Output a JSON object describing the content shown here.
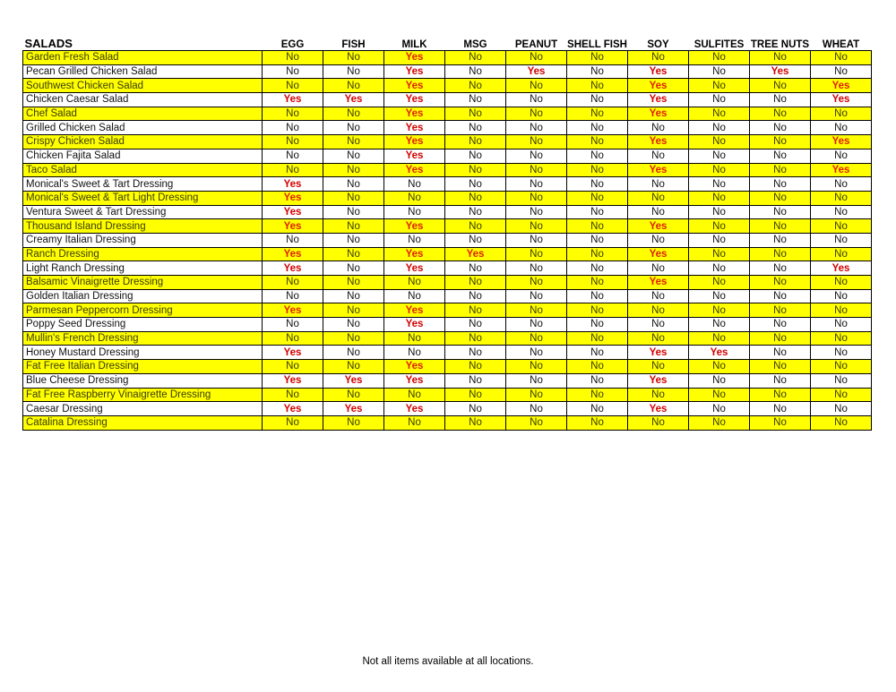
{
  "table": {
    "title": "SALADS",
    "columns": [
      "EGG",
      "FISH",
      "MILK",
      "MSG",
      "PEANUT",
      "SHELL FISH",
      "SOY",
      "SULFITES",
      "TREE NUTS",
      "WHEAT"
    ],
    "highlight_color": "#ffff00",
    "yes_color": "#d40000",
    "rows": [
      {
        "name": "Garden Fresh Salad",
        "values": [
          "No",
          "No",
          "Yes",
          "No",
          "No",
          "No",
          "No",
          "No",
          "No",
          "No"
        ]
      },
      {
        "name": "Pecan Grilled Chicken Salad",
        "values": [
          "No",
          "No",
          "Yes",
          "No",
          "Yes",
          "No",
          "Yes",
          "No",
          "Yes",
          "No"
        ]
      },
      {
        "name": "Southwest Chicken Salad",
        "values": [
          "No",
          "No",
          "Yes",
          "No",
          "No",
          "No",
          "Yes",
          "No",
          "No",
          "Yes"
        ]
      },
      {
        "name": "Chicken Caesar Salad",
        "values": [
          "Yes",
          "Yes",
          "Yes",
          "No",
          "No",
          "No",
          "Yes",
          "No",
          "No",
          "Yes"
        ]
      },
      {
        "name": "Chef Salad",
        "values": [
          "No",
          "No",
          "Yes",
          "No",
          "No",
          "No",
          "Yes",
          "No",
          "No",
          "No"
        ]
      },
      {
        "name": "Grilled Chicken Salad",
        "values": [
          "No",
          "No",
          "Yes",
          "No",
          "No",
          "No",
          "No",
          "No",
          "No",
          "No"
        ]
      },
      {
        "name": "Crispy Chicken Salad",
        "values": [
          "No",
          "No",
          "Yes",
          "No",
          "No",
          "No",
          "Yes",
          "No",
          "No",
          "Yes"
        ]
      },
      {
        "name": "Chicken Fajita Salad",
        "values": [
          "No",
          "No",
          "Yes",
          "No",
          "No",
          "No",
          "No",
          "No",
          "No",
          "No"
        ]
      },
      {
        "name": "Taco Salad",
        "values": [
          "No",
          "No",
          "Yes",
          "No",
          "No",
          "No",
          "Yes",
          "No",
          "No",
          "Yes"
        ]
      },
      {
        "name": "Monical's Sweet & Tart Dressing",
        "values": [
          "Yes",
          "No",
          "No",
          "No",
          "No",
          "No",
          "No",
          "No",
          "No",
          "No"
        ]
      },
      {
        "name": "Monical's Sweet & Tart Light Dressing",
        "values": [
          "Yes",
          "No",
          "No",
          "No",
          "No",
          "No",
          "No",
          "No",
          "No",
          "No"
        ]
      },
      {
        "name": "Ventura Sweet & Tart Dressing",
        "values": [
          "Yes",
          "No",
          "No",
          "No",
          "No",
          "No",
          "No",
          "No",
          "No",
          "No"
        ]
      },
      {
        "name": "Thousand Island Dressing",
        "values": [
          "Yes",
          "No",
          "Yes",
          "No",
          "No",
          "No",
          "Yes",
          "No",
          "No",
          "No"
        ]
      },
      {
        "name": "Creamy Italian Dressing",
        "values": [
          "No",
          "No",
          "No",
          "No",
          "No",
          "No",
          "No",
          "No",
          "No",
          "No"
        ]
      },
      {
        "name": "Ranch Dressing",
        "values": [
          "Yes",
          "No",
          "Yes",
          "Yes",
          "No",
          "No",
          "Yes",
          "No",
          "No",
          "No"
        ]
      },
      {
        "name": "Light Ranch Dressing",
        "values": [
          "Yes",
          "No",
          "Yes",
          "No",
          "No",
          "No",
          "No",
          "No",
          "No",
          "Yes"
        ]
      },
      {
        "name": "Balsamic Vinaigrette Dressing",
        "values": [
          "No",
          "No",
          "No",
          "No",
          "No",
          "No",
          "Yes",
          "No",
          "No",
          "No"
        ]
      },
      {
        "name": "Golden Italian Dressing",
        "values": [
          "No",
          "No",
          "No",
          "No",
          "No",
          "No",
          "No",
          "No",
          "No",
          "No"
        ]
      },
      {
        "name": "Parmesan Peppercorn Dressing",
        "values": [
          "Yes",
          "No",
          "Yes",
          "No",
          "No",
          "No",
          "No",
          "No",
          "No",
          "No"
        ]
      },
      {
        "name": "Poppy Seed Dressing",
        "values": [
          "No",
          "No",
          "Yes",
          "No",
          "No",
          "No",
          "No",
          "No",
          "No",
          "No"
        ]
      },
      {
        "name": "Mullin's French Dressing",
        "values": [
          "No",
          "No",
          "No",
          "No",
          "No",
          "No",
          "No",
          "No",
          "No",
          "No"
        ]
      },
      {
        "name": "Honey Mustard Dressing",
        "values": [
          "Yes",
          "No",
          "No",
          "No",
          "No",
          "No",
          "Yes",
          "Yes",
          "No",
          "No"
        ]
      },
      {
        "name": "Fat Free Italian Dressing",
        "values": [
          "No",
          "No",
          "Yes",
          "No",
          "No",
          "No",
          "No",
          "No",
          "No",
          "No"
        ]
      },
      {
        "name": "Blue Cheese Dressing",
        "values": [
          "Yes",
          "Yes",
          "Yes",
          "No",
          "No",
          "No",
          "Yes",
          "No",
          "No",
          "No"
        ]
      },
      {
        "name": "Fat Free Raspberry Vinaigrette Dressing",
        "values": [
          "No",
          "No",
          "No",
          "No",
          "No",
          "No",
          "No",
          "No",
          "No",
          "No"
        ]
      },
      {
        "name": "Caesar Dressing",
        "values": [
          "Yes",
          "Yes",
          "Yes",
          "No",
          "No",
          "No",
          "Yes",
          "No",
          "No",
          "No"
        ]
      },
      {
        "name": "Catalina Dressing",
        "values": [
          "No",
          "No",
          "No",
          "No",
          "No",
          "No",
          "No",
          "No",
          "No",
          "No"
        ]
      }
    ]
  },
  "footer": "Not all items available at all locations."
}
